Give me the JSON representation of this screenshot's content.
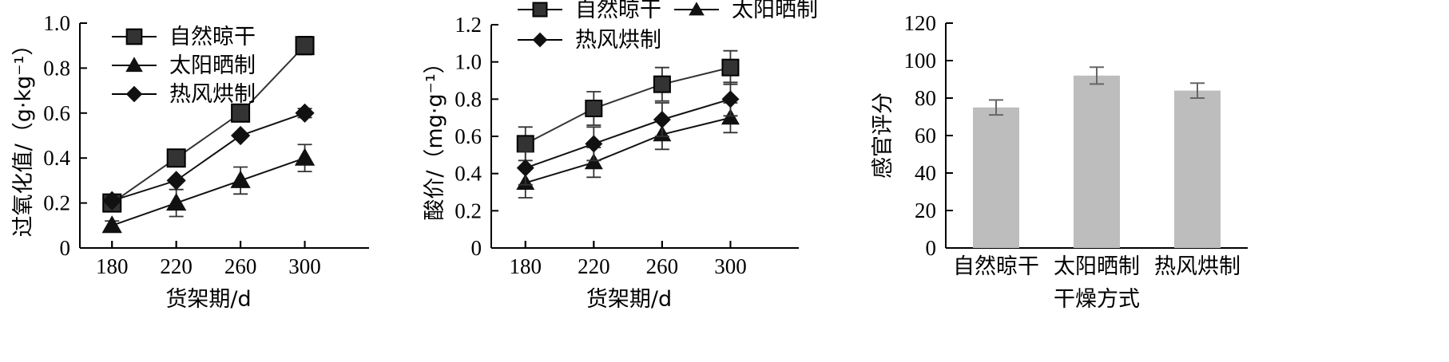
{
  "chart_data": [
    {
      "type": "line",
      "title": "",
      "xlabel": "货架期/d",
      "ylabel": "过氧化值/（g·kg⁻¹）",
      "x": [
        180,
        220,
        260,
        300
      ],
      "xlim": [
        160,
        340
      ],
      "ylim": [
        0,
        1.0
      ],
      "yticks": [
        0,
        0.2,
        0.4,
        0.6,
        0.8,
        1.0
      ],
      "ytick_labels": [
        "0",
        "0.2",
        "0.4",
        "0.6",
        "0.8",
        "1.0"
      ],
      "legend_placement": "top-left",
      "series": [
        {
          "name": "自然晾干",
          "marker": "square",
          "color": "#333333",
          "values": [
            0.2,
            0.4,
            0.6,
            0.9
          ],
          "errors": [
            0.01,
            0.01,
            0.01,
            0.04
          ]
        },
        {
          "name": "太阳晒制",
          "marker": "triangle",
          "color": "#111111",
          "values": [
            0.1,
            0.2,
            0.3,
            0.4
          ],
          "errors": [
            0.02,
            0.06,
            0.06,
            0.06
          ]
        },
        {
          "name": "热风烘制",
          "marker": "diamond",
          "color": "#111111",
          "values": [
            0.21,
            0.3,
            0.5,
            0.6
          ],
          "errors": [
            0.01,
            0.01,
            0.01,
            0.02
          ]
        }
      ]
    },
    {
      "type": "line",
      "title": "",
      "xlabel": "货架期/d",
      "ylabel": "酸价/（mg·g⁻¹）",
      "x": [
        180,
        220,
        260,
        300
      ],
      "xlim": [
        160,
        340
      ],
      "ylim": [
        0,
        1.2
      ],
      "yticks": [
        0,
        0.2,
        0.4,
        0.6,
        0.8,
        1.0,
        1.2
      ],
      "ytick_labels": [
        "0",
        "0.2",
        "0.4",
        "0.6",
        "0.8",
        "1.0",
        "1.2"
      ],
      "legend_placement": "top",
      "series": [
        {
          "name": "自然晾干",
          "marker": "square",
          "color": "#333333",
          "values": [
            0.56,
            0.75,
            0.88,
            0.97
          ],
          "errors": [
            0.09,
            0.09,
            0.09,
            0.09
          ]
        },
        {
          "name": "太阳晒制",
          "marker": "triangle",
          "color": "#111111",
          "values": [
            0.35,
            0.46,
            0.61,
            0.7
          ],
          "errors": [
            0.08,
            0.08,
            0.08,
            0.08
          ]
        },
        {
          "name": "热风烘制",
          "marker": "diamond",
          "color": "#111111",
          "values": [
            0.43,
            0.56,
            0.69,
            0.8
          ],
          "errors": [
            0.09,
            0.09,
            0.09,
            0.09
          ]
        }
      ]
    },
    {
      "type": "bar",
      "title": "",
      "xlabel": "干燥方式",
      "ylabel": "感官评分",
      "categories": [
        "自然晾干",
        "太阳晒制",
        "热风烘制"
      ],
      "values": [
        75,
        92,
        84
      ],
      "errors": [
        4,
        4.5,
        4
      ],
      "ylim": [
        0,
        120
      ],
      "yticks": [
        0,
        20,
        40,
        60,
        80,
        100,
        120
      ],
      "ytick_labels": [
        "0",
        "20",
        "40",
        "60",
        "80",
        "100",
        "120"
      ],
      "bar_color": "#bdbdbd",
      "error_color": "#666666"
    }
  ]
}
